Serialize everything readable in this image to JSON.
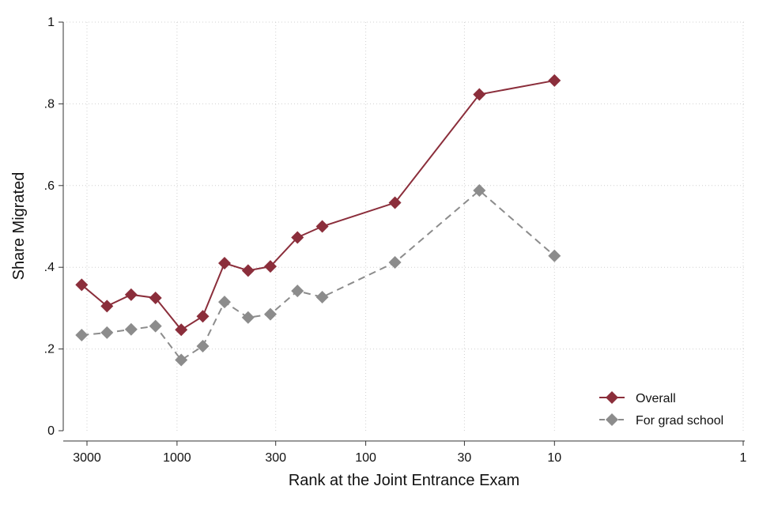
{
  "chart_data": {
    "type": "line",
    "xlabel": "Rank at the Joint Entrance Exam",
    "ylabel": "Share Migrated",
    "x_scale": "log",
    "x_reversed": true,
    "xlim": [
      3300,
      1
    ],
    "ylim": [
      0,
      1
    ],
    "x_ticks": [
      {
        "value": 3000,
        "label": "3000"
      },
      {
        "value": 1000,
        "label": "1000"
      },
      {
        "value": 300,
        "label": "300"
      },
      {
        "value": 100,
        "label": "100"
      },
      {
        "value": 30,
        "label": "30"
      },
      {
        "value": 10,
        "label": "10"
      },
      {
        "value": 1,
        "label": "1"
      }
    ],
    "y_ticks": [
      {
        "value": 0,
        "label": "0"
      },
      {
        "value": 0.2,
        "label": ".2"
      },
      {
        "value": 0.4,
        "label": ".4"
      },
      {
        "value": 0.6,
        "label": ".6"
      },
      {
        "value": 0.8,
        "label": ".8"
      },
      {
        "value": 1,
        "label": "1"
      }
    ],
    "grid": true,
    "legend_position": "bottom-right",
    "x": [
      3200,
      2350,
      1750,
      1300,
      950,
      730,
      560,
      420,
      320,
      230,
      170,
      70,
      25,
      10
    ],
    "series": [
      {
        "name": "Overall",
        "color": "#8b2e3b",
        "dash": "solid",
        "marker": "diamond",
        "values": [
          0.357,
          0.305,
          0.333,
          0.325,
          0.247,
          0.28,
          0.41,
          0.392,
          0.402,
          0.473,
          0.5,
          0.558,
          0.823,
          0.857
        ]
      },
      {
        "name": "For grad school",
        "color": "#8c8c8c",
        "dash": "dashed",
        "marker": "diamond",
        "values": [
          0.234,
          0.24,
          0.248,
          0.256,
          0.173,
          0.207,
          0.315,
          0.277,
          0.285,
          0.342,
          0.327,
          0.412,
          0.588,
          0.428
        ]
      }
    ]
  }
}
